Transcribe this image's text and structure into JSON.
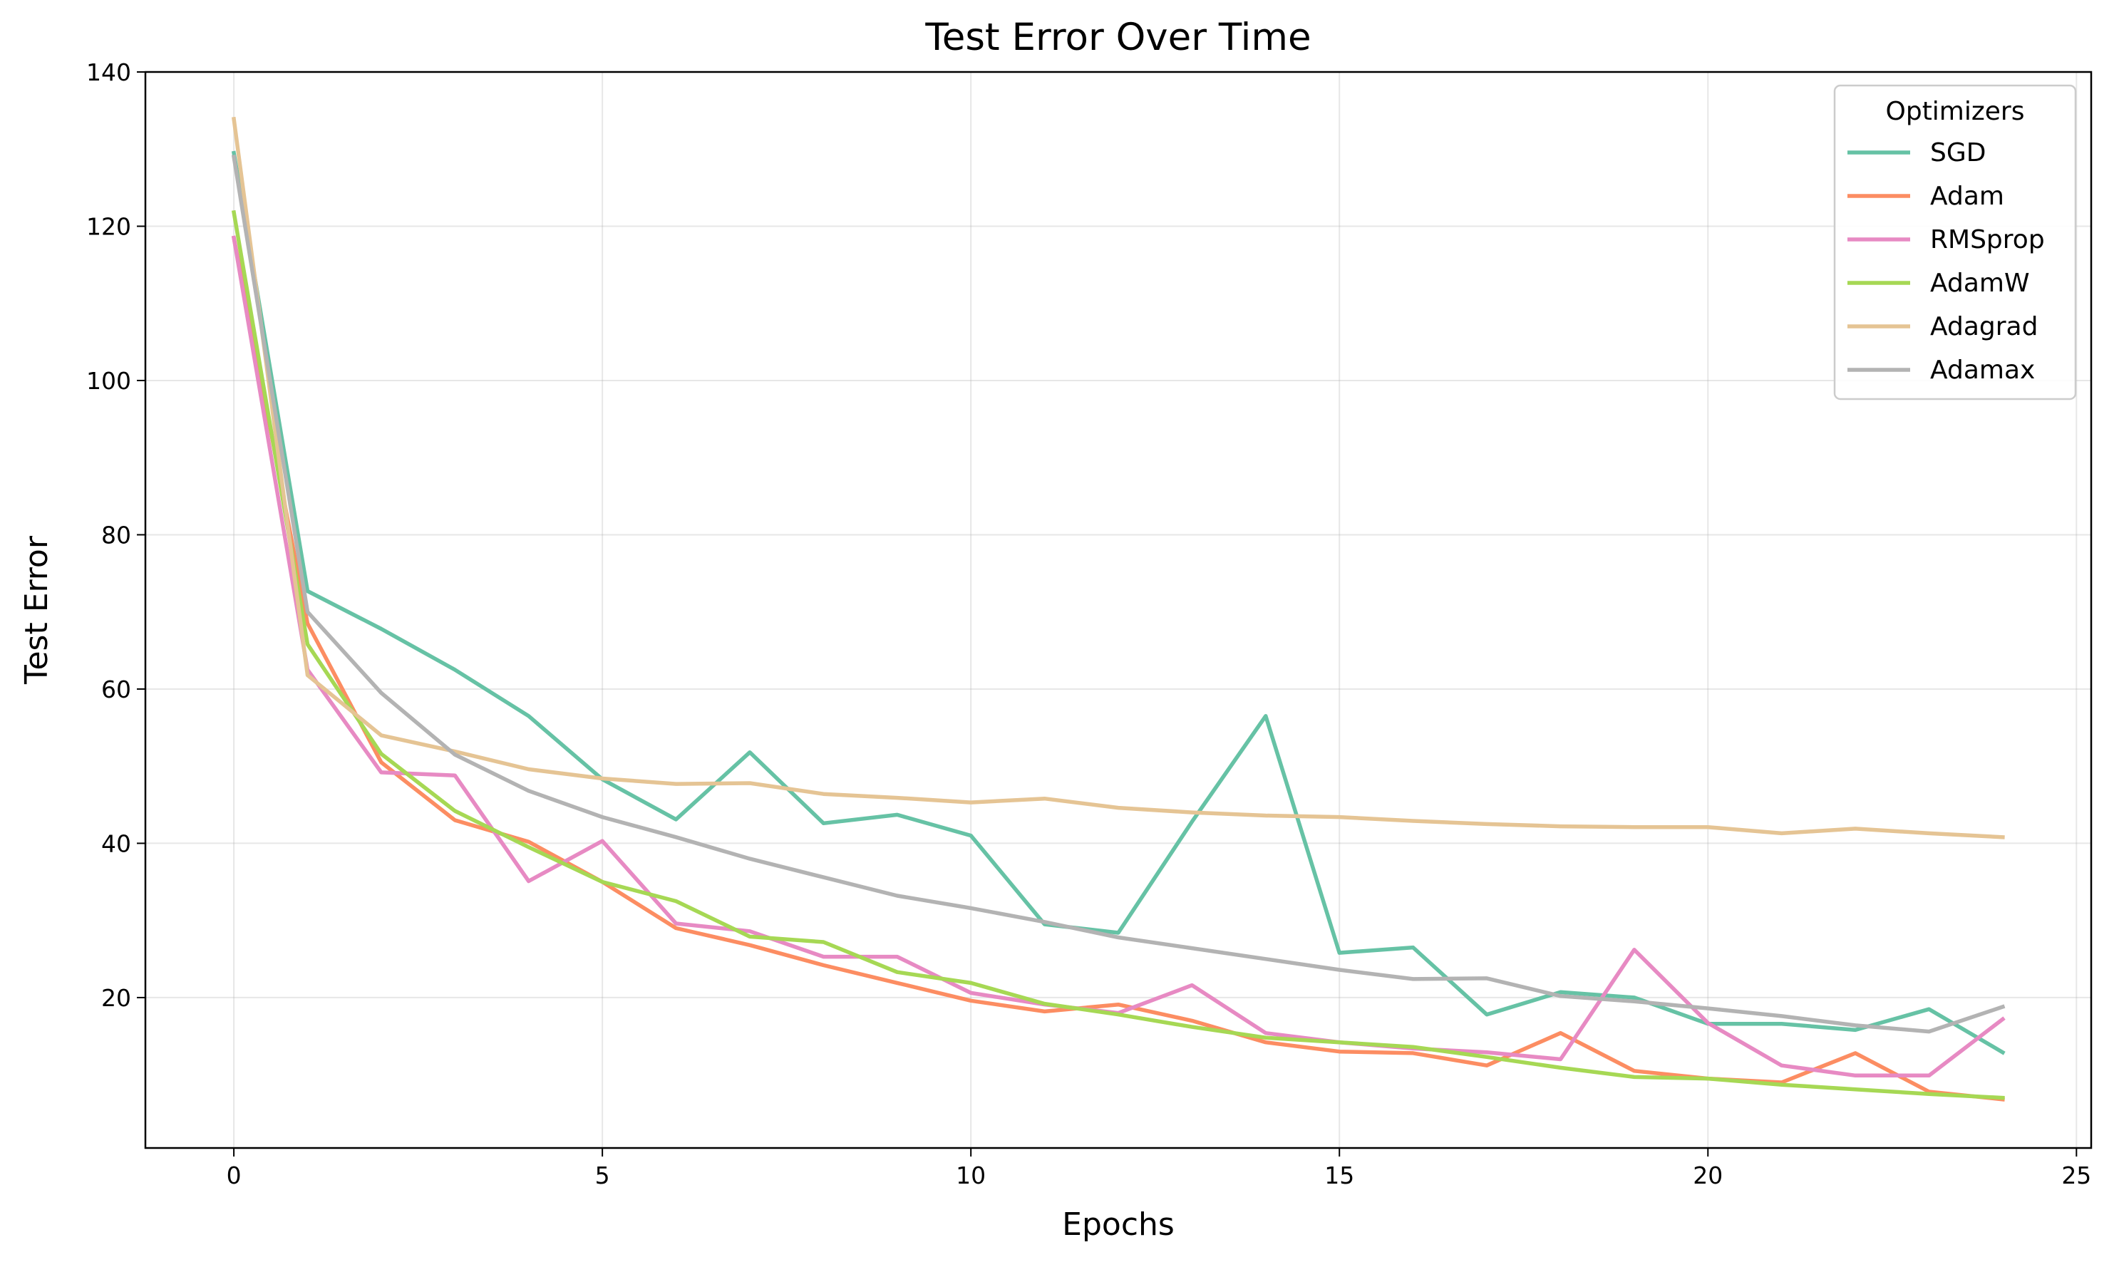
{
  "chart_data": {
    "type": "line",
    "title": "Test Error Over Time",
    "xlabel": "Epochs",
    "ylabel": "Test Error",
    "xlim": [
      -1.2,
      25.2
    ],
    "ylim": [
      0.5,
      140
    ],
    "xticks": [
      0,
      5,
      10,
      15,
      20,
      25
    ],
    "yticks": [
      20,
      40,
      60,
      80,
      100,
      120,
      140
    ],
    "grid": true,
    "legend": {
      "title": "Optimizers",
      "position": "top-right"
    },
    "x": [
      0,
      1,
      2,
      3,
      4,
      5,
      6,
      7,
      8,
      9,
      10,
      11,
      12,
      13,
      14,
      15,
      16,
      17,
      18,
      19,
      20,
      21,
      22,
      23,
      24
    ],
    "series": [
      {
        "name": "SGD",
        "color": "#66c2a5",
        "values": [
          129.5,
          72.7,
          67.8,
          62.5,
          56.5,
          48.3,
          43.1,
          51.8,
          42.6,
          43.7,
          41.0,
          29.5,
          28.4,
          42.8,
          56.5,
          25.8,
          26.5,
          17.8,
          20.7,
          20.0,
          16.6,
          16.6,
          15.8,
          18.5,
          12.9
        ]
      },
      {
        "name": "Adam",
        "color": "#fc8d62",
        "values": [
          118.5,
          68.5,
          50.5,
          43.0,
          40.2,
          35.0,
          29.0,
          26.8,
          24.2,
          21.9,
          19.6,
          18.2,
          19.1,
          17.0,
          14.2,
          13.0,
          12.8,
          11.2,
          15.4,
          10.5,
          9.5,
          9.0,
          12.8,
          7.8,
          6.8
        ]
      },
      {
        "name": "RMSprop",
        "color": "#e78ac3",
        "values": [
          118.5,
          62.5,
          49.2,
          48.8,
          35.1,
          40.3,
          29.6,
          28.6,
          25.3,
          25.3,
          20.6,
          19.1,
          18.0,
          21.6,
          15.4,
          14.2,
          13.4,
          12.9,
          12.0,
          26.2,
          16.7,
          11.2,
          9.9,
          9.9,
          17.2
        ]
      },
      {
        "name": "AdamW",
        "color": "#a6d854",
        "values": [
          121.8,
          65.8,
          51.6,
          44.2,
          39.5,
          35.0,
          32.5,
          27.9,
          27.2,
          23.3,
          21.9,
          19.2,
          17.8,
          16.2,
          14.8,
          14.2,
          13.6,
          12.3,
          10.9,
          9.7,
          9.5,
          8.7,
          8.1,
          7.5,
          7.0
        ]
      },
      {
        "name": "Adagrad",
        "color": "#e5c494",
        "values": [
          133.9,
          61.8,
          54.0,
          51.9,
          49.6,
          48.4,
          47.7,
          47.8,
          46.4,
          45.9,
          45.3,
          45.8,
          44.6,
          44.0,
          43.6,
          43.4,
          42.9,
          42.5,
          42.2,
          42.1,
          42.1,
          41.3,
          41.9,
          41.3,
          40.8
        ]
      },
      {
        "name": "Adamax",
        "color": "#b3b3b3",
        "values": [
          129.0,
          70.0,
          59.5,
          51.5,
          46.8,
          43.4,
          40.8,
          38.0,
          35.6,
          33.2,
          31.6,
          29.8,
          27.8,
          26.4,
          25.0,
          23.6,
          22.4,
          22.5,
          20.2,
          19.5,
          18.6,
          17.6,
          16.4,
          15.6,
          18.8
        ]
      }
    ]
  }
}
